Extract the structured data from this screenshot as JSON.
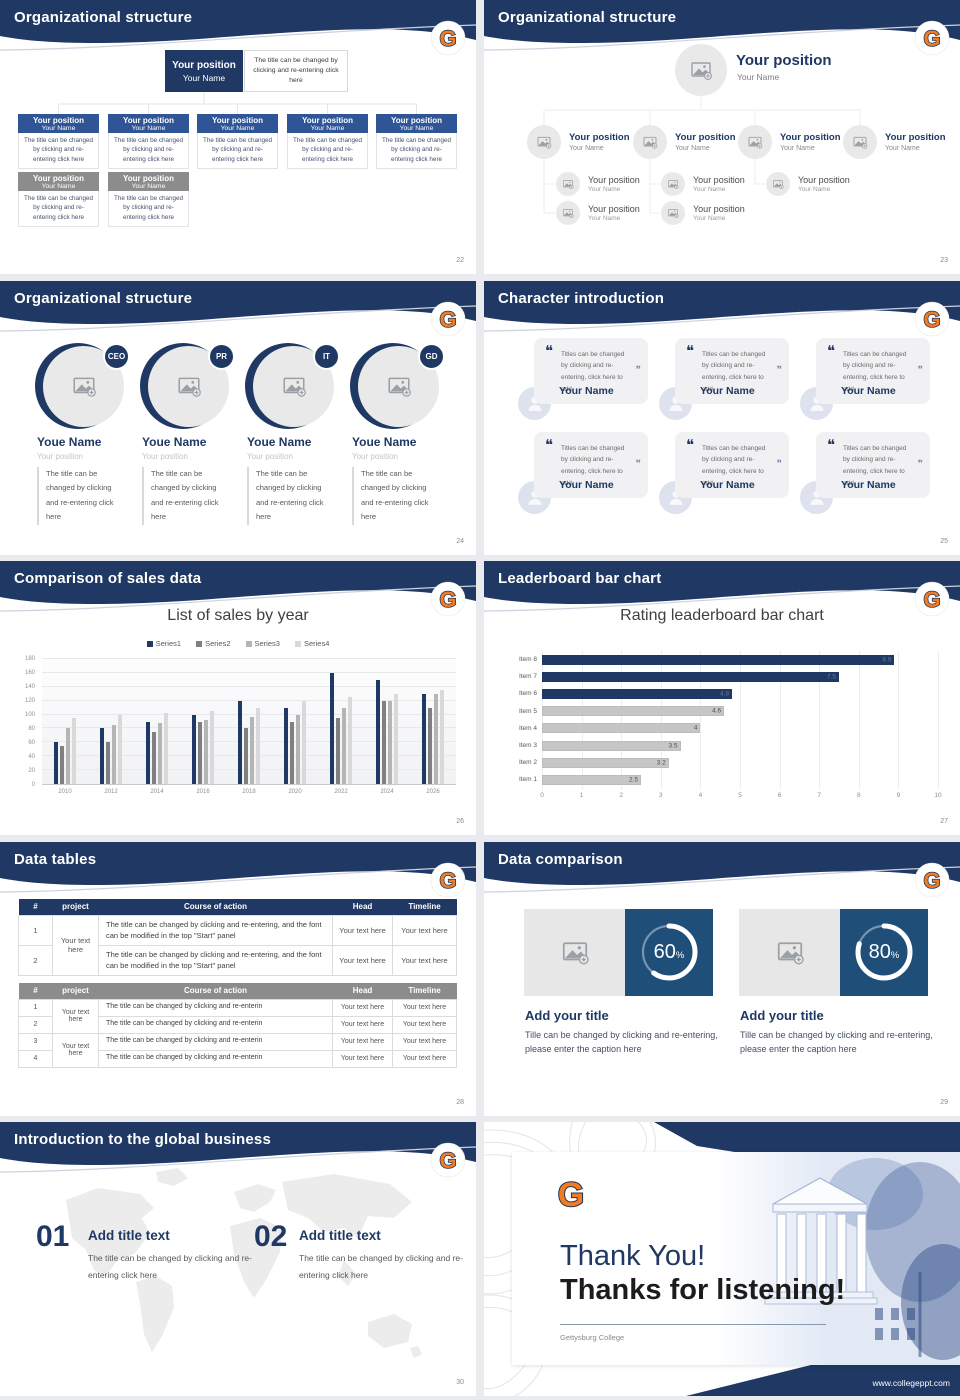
{
  "theme": {
    "navy": "#1f3864",
    "box_blue": "#2f5597",
    "box_gray": "#8c8c8c",
    "panel_blue": "#1f4e79",
    "accent_orange": "#f47b20",
    "logo_letter": "G"
  },
  "slides": [
    {
      "title": "Organizational structure",
      "page_number": "22",
      "root": {
        "position": "Your position",
        "name": "Your Name"
      },
      "root_note": "The title can be changed by clicking and re-entering click here",
      "node": {
        "position": "Your position",
        "name": "Your Name",
        "caption": "The title can be changed by clicking and re-entering click here"
      }
    },
    {
      "title": "Organizational structure",
      "page_number": "23",
      "node": {
        "position": "Your position",
        "name": "Your Name"
      }
    },
    {
      "title": "Organizational structure",
      "page_number": "24",
      "caption": "The title can be changed by clicking and re-entering click here",
      "profiles": [
        {
          "badge": "CEO",
          "name": "Youe Name",
          "position": "Your position"
        },
        {
          "badge": "PR",
          "name": "Youe Name",
          "position": "Your position"
        },
        {
          "badge": "IT",
          "name": "Youe Name",
          "position": "Your position"
        },
        {
          "badge": "GD",
          "name": "Youe Name",
          "position": "Your position"
        }
      ]
    },
    {
      "title": "Character introduction",
      "page_number": "25",
      "card": {
        "quote": "Titles can be changed by clicking and re-entering, click here to add",
        "name": "Your Name"
      }
    },
    {
      "title": "Comparison of sales data",
      "page_number": "26",
      "chart_title": "List of sales by year"
    },
    {
      "title": "Leaderboard bar chart",
      "page_number": "27",
      "chart_title": "Rating leaderboard bar chart"
    },
    {
      "title": "Data tables",
      "page_number": "28",
      "columns": [
        "#",
        "project",
        "Course of action",
        "Head",
        "Timeline"
      ],
      "cell": "Your text here",
      "project_cell": "Your text here",
      "table1_course": "The title can be changed by clicking and re-entering, and the font can be modified in the top \"Start\" panel",
      "table2_course": "The title can be changed by clicking and re-enterin",
      "t1_rows": [
        "1",
        "2"
      ],
      "t2_rows": [
        "1",
        "2",
        "3",
        "4"
      ]
    },
    {
      "title": "Data comparison",
      "page_number": "29",
      "panels": [
        {
          "percent": 60,
          "unit": "%",
          "heading": "Add your title",
          "caption": "Tille can be changed by clicking and re-entering, please enter the caption here"
        },
        {
          "percent": 80,
          "unit": "%",
          "heading": "Add your title",
          "caption": "Tille can be changed by clicking and re-entering, please enter the caption here"
        }
      ]
    },
    {
      "title": "Introduction to the global business",
      "page_number": "30",
      "items": [
        {
          "number": "01",
          "heading": "Add title text",
          "caption": "The title can be changed by clicking and re-entering click here"
        },
        {
          "number": "02",
          "heading": "Add title text",
          "caption": "The title can be changed by clicking and re-entering click here"
        }
      ]
    },
    {
      "heading_primary": "Thank You!",
      "heading_secondary": "Thanks for listening!",
      "organization": "Gettysburg College",
      "website": "www.collegeppt.com"
    }
  ],
  "chart_data": [
    {
      "type": "bar",
      "title": "List of sales by year",
      "categories": [
        "2010",
        "2012",
        "2014",
        "2016",
        "2018",
        "2020",
        "2022",
        "2024",
        "2026"
      ],
      "series": [
        {
          "name": "Series1",
          "color": "#1f3864",
          "values": [
            60,
            80,
            90,
            100,
            120,
            110,
            160,
            150,
            130
          ]
        },
        {
          "name": "Series2",
          "color": "#808080",
          "values": [
            55,
            60,
            75,
            90,
            80,
            90,
            95,
            120,
            110
          ]
        },
        {
          "name": "Series3",
          "color": "#b5b5b5",
          "values": [
            80,
            85,
            88,
            92,
            97,
            100,
            110,
            120,
            130
          ]
        },
        {
          "name": "Series4",
          "color": "#d9d9d9",
          "values": [
            95,
            100,
            102,
            105,
            110,
            120,
            125,
            130,
            135
          ]
        }
      ],
      "xlabel": "",
      "ylabel": "",
      "ylim": [
        0,
        180
      ],
      "ytick_step": 20,
      "grid": true,
      "legend_position": "top"
    },
    {
      "type": "bar",
      "orientation": "horizontal",
      "title": "Rating leaderboard bar chart",
      "categories": [
        "Item 8",
        "Item 7",
        "Item 6",
        "Item 5",
        "Item 4",
        "Item 3",
        "Item 2",
        "Item 1"
      ],
      "values": [
        8.9,
        7.5,
        4.8,
        4.6,
        4,
        3.5,
        3.2,
        2.5
      ],
      "value_labels": [
        "8.9",
        "7.5",
        "4.8",
        "4.6",
        "4",
        "3.5",
        "3.2",
        "2.5"
      ],
      "bar_colors": [
        "#1f3864",
        "#1f3864",
        "#1f3864",
        "#c6c6c6",
        "#c6c6c6",
        "#c6c6c6",
        "#c6c6c6",
        "#c6c6c6"
      ],
      "xlim": [
        0,
        10
      ],
      "xtick_step": 1,
      "grid": true,
      "legend_position": "none"
    }
  ]
}
